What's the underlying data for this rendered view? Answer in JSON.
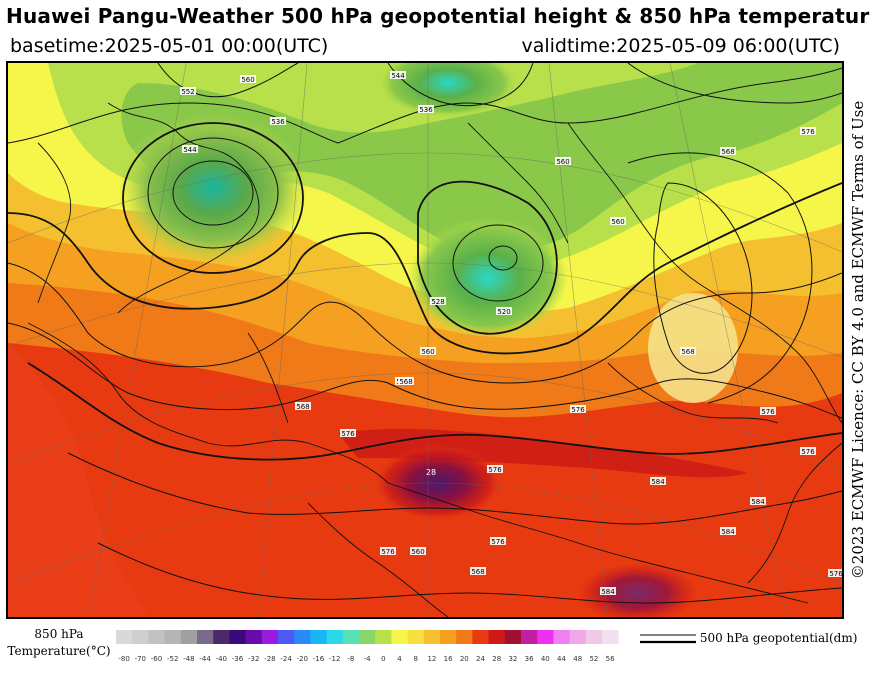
{
  "header": {
    "title": "Huawei Pangu-Weather 500 hPa geopotential height & 850 hPa temperature",
    "basetime": "basetime:2025-05-01 00:00(UTC)",
    "validtime": "validtime:2025-05-09 06:00(UTC)"
  },
  "license": "©2023 ECMWF Licence: CC BY 4.0 and ECMWF Terms of Use",
  "legend": {
    "temperature_label_line1": "850 hPa",
    "temperature_label_line2": "Temperature(°C)",
    "ticks": [
      "-80",
      "-70",
      "-60",
      "-52",
      "-48",
      "-44",
      "-40",
      "-36",
      "-32",
      "-28",
      "-24",
      "-20",
      "-16",
      "-12",
      "-8",
      "-4",
      "0",
      "4",
      "8",
      "12",
      "16",
      "20",
      "24",
      "28",
      "32",
      "36",
      "40",
      "44",
      "48",
      "52",
      "56"
    ],
    "colors": [
      "#d9d9d9",
      "#cfcfcf",
      "#c2c2c2",
      "#b5b5b5",
      "#a0a0a0",
      "#7b6b8b",
      "#4a2a6a",
      "#3a0a7a",
      "#6a0aaa",
      "#9a1add",
      "#4a5af5",
      "#2a8af5",
      "#1ab5f5",
      "#2ad8e8",
      "#5ae0b5",
      "#8ad56a",
      "#b8e04a",
      "#f5f54a",
      "#f5e040",
      "#f5c030",
      "#f5a020",
      "#f07a18",
      "#e83a10",
      "#d01818",
      "#a01030",
      "#c020a0",
      "#f030f0",
      "#f080f0",
      "#f0a8e8",
      "#f0c8e8",
      "#f0e0f0"
    ],
    "geopotential_label": "500 hPa geopotential(dm)"
  },
  "map": {
    "contour_labels": [
      "560",
      "552",
      "544",
      "536",
      "528",
      "520",
      "560",
      "560",
      "568",
      "576",
      "560",
      "552",
      "544",
      "536",
      "568",
      "576",
      "568",
      "576",
      "576",
      "576",
      "584",
      "576",
      "568",
      "576",
      "584",
      "560",
      "568",
      "576",
      "584",
      "576",
      "584"
    ],
    "region_label_center": "28"
  }
}
